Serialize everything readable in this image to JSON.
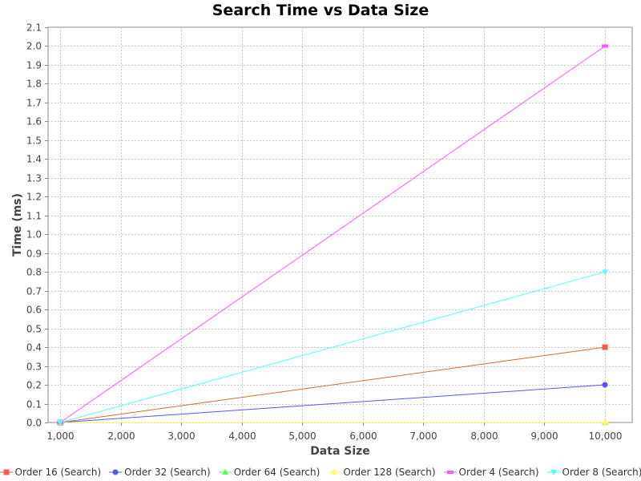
{
  "chart_data": {
    "type": "line",
    "title": "Search Time vs Data Size",
    "xlabel": "Data Size",
    "ylabel": "Time (ms)",
    "xlim": [
      800,
      10450
    ],
    "ylim": [
      0,
      2.1
    ],
    "x_ticks": [
      "1,000",
      "2,000",
      "3,000",
      "4,000",
      "5,000",
      "6,000",
      "7,000",
      "8,000",
      "9,000",
      "10,000"
    ],
    "y_ticks": [
      "0.0",
      "0.1",
      "0.2",
      "0.3",
      "0.4",
      "0.5",
      "0.6",
      "0.7",
      "0.8",
      "0.9",
      "1.0",
      "1.1",
      "1.2",
      "1.3",
      "1.4",
      "1.5",
      "1.6",
      "1.7",
      "1.8",
      "1.9",
      "2.0",
      "2.1"
    ],
    "grid": true,
    "legend_position": "bottom",
    "x": [
      1000,
      10000
    ],
    "series": [
      {
        "name": "Order 16 (Search)",
        "values": [
          0.0,
          0.4
        ],
        "color": "#ff5555",
        "line_color": "#c87032",
        "marker": "square"
      },
      {
        "name": "Order 32 (Search)",
        "values": [
          0.0,
          0.2
        ],
        "color": "#5555ff",
        "line_color": "#5555ff",
        "marker": "circle"
      },
      {
        "name": "Order 64 (Search)",
        "values": [
          0.0,
          0.0
        ],
        "color": "#55ff55",
        "line_color": "#55ff55",
        "marker": "triangle-up"
      },
      {
        "name": "Order 128 (Search)",
        "values": [
          0.0,
          0.0
        ],
        "color": "#ffff55",
        "line_color": "#ffff55",
        "marker": "diamond"
      },
      {
        "name": "Order 4 (Search)",
        "values": [
          0.0,
          2.0
        ],
        "color": "#ff55ff",
        "line_color": "#ff55ff",
        "marker": "rect-wide"
      },
      {
        "name": "Order 8 (Search)",
        "values": [
          0.0,
          0.8
        ],
        "color": "#55ffff",
        "line_color": "#55ffff",
        "marker": "triangle-down"
      }
    ]
  }
}
